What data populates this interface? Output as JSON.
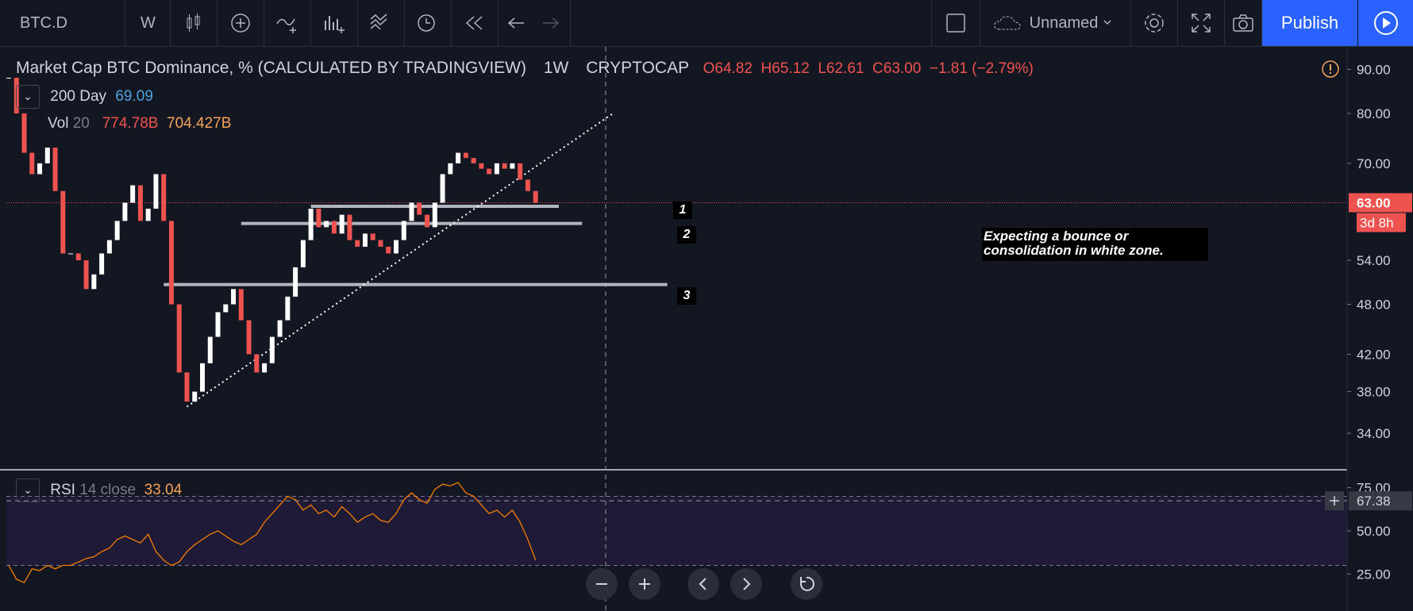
{
  "toolbar": {
    "symbol": "BTC.D",
    "interval": "W",
    "layout_name": "Unnamed",
    "publish": "Publish"
  },
  "legend": {
    "title": "Market Cap BTC Dominance, % (CALCULATED BY TRADINGVIEW)",
    "interval": "1W",
    "exchange": "CRYPTOCAP",
    "open_label": "O",
    "open": "64.82",
    "high_label": "H",
    "high": "65.12",
    "low_label": "L",
    "low": "62.61",
    "close_label": "C",
    "close": "63.00",
    "change": "−1.81 (−2.79%)"
  },
  "indicators": [
    {
      "name": "200 Day",
      "values": [
        "69.09"
      ]
    },
    {
      "name": "Vol",
      "param": "20",
      "values": [
        "774.78B",
        "704.427B"
      ]
    }
  ],
  "price_axis": {
    "log": true,
    "ylim": [
      30.9,
      95.6
    ],
    "yticks": [
      {
        "value": 90,
        "label": "90.00"
      },
      {
        "value": 80,
        "label": "80.00"
      },
      {
        "value": 70,
        "label": "70.00"
      },
      {
        "value": 54,
        "label": "54.00"
      },
      {
        "value": 48,
        "label": "48.00"
      },
      {
        "value": 42,
        "label": "42.00"
      },
      {
        "value": 38,
        "label": "38.00"
      },
      {
        "value": 34,
        "label": "34.00"
      }
    ],
    "last_price": {
      "value": 63,
      "label": "63.00"
    },
    "countdown": "3d 8h"
  },
  "candles": {
    "up_color": "#ffffff",
    "down_color": "#ef5350",
    "closes": [
      88,
      80,
      72,
      68,
      70,
      73,
      65,
      55,
      55,
      54,
      50,
      52,
      55,
      57,
      60,
      63,
      66,
      60,
      62,
      68,
      60,
      48,
      40,
      37,
      38,
      41,
      44,
      47,
      48,
      50,
      46,
      42,
      40,
      41,
      44,
      46,
      49,
      53,
      57,
      62,
      59,
      60,
      58,
      61,
      57,
      56,
      58,
      57,
      56,
      55,
      57,
      60,
      63,
      61,
      59,
      63,
      68,
      70,
      72,
      71,
      70,
      69,
      68,
      70,
      69,
      70,
      67,
      65,
      63
    ]
  },
  "levels": [
    {
      "label": "1",
      "price": 62.4,
      "from": 39,
      "to": 71
    },
    {
      "label": "2",
      "price": 59.6,
      "from": 30,
      "to": 74
    },
    {
      "label": "3",
      "price": 50.6,
      "from": 20,
      "to": 85
    }
  ],
  "trendline": {
    "from_index": 23,
    "from_price": 36.5,
    "to_index": 78,
    "to_price": 80
  },
  "annotation": "Expecting a bounce or consolidation in white zone.",
  "rsi": {
    "name": "RSI",
    "params": "14 close",
    "value": "33.04",
    "ylim": [
      3.6,
      84.9
    ],
    "yticks": [
      {
        "value": 75,
        "label": "75.00"
      },
      {
        "value": 50,
        "label": "50.00"
      },
      {
        "value": 25,
        "label": "25.00"
      }
    ],
    "bands": [
      70,
      30
    ],
    "crosshair": {
      "value": 67.38,
      "label": "67.38"
    },
    "values": [
      30,
      22,
      20,
      28,
      27,
      30,
      28,
      30,
      30,
      32,
      34,
      35,
      38,
      40,
      45,
      47,
      45,
      43,
      48,
      38,
      33,
      30,
      32,
      38,
      42,
      45,
      48,
      50,
      47,
      44,
      42,
      45,
      48,
      55,
      60,
      65,
      70,
      68,
      62,
      65,
      60,
      62,
      58,
      64,
      60,
      55,
      58,
      60,
      56,
      55,
      60,
      68,
      72,
      68,
      66,
      74,
      77,
      76,
      78,
      72,
      70,
      65,
      60,
      62,
      58,
      62,
      55,
      45,
      33.04
    ]
  }
}
